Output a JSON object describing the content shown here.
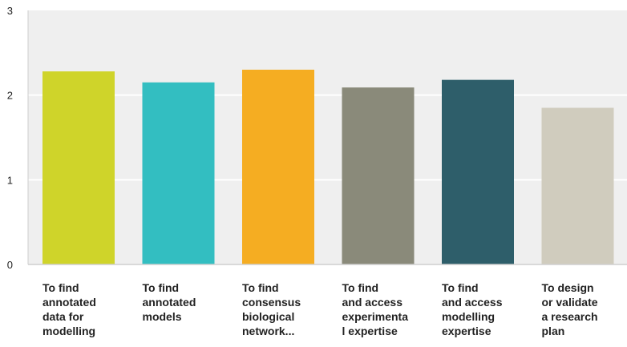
{
  "chart_data": {
    "type": "bar",
    "categories": [
      [
        "To find",
        "annotated",
        "data for",
        "modelling"
      ],
      [
        "To find",
        "annotated",
        "models"
      ],
      [
        "To find",
        "consensus",
        "biological",
        "network..."
      ],
      [
        "To find",
        "and access",
        "experimenta",
        "l expertise"
      ],
      [
        "To find",
        "and access",
        "modelling",
        "expertise"
      ],
      [
        "To design",
        "or validate",
        "a research",
        "plan"
      ]
    ],
    "values": [
      2.28,
      2.15,
      2.3,
      2.09,
      2.18,
      1.85
    ],
    "colors": [
      "#cfd42a",
      "#33bec1",
      "#f5ad22",
      "#8a8a7a",
      "#2e5e6a",
      "#d0ccbe"
    ],
    "ylim": [
      0,
      3
    ],
    "yticks": [
      "0",
      "1",
      "2",
      "3"
    ],
    "grid": true,
    "background": "#efefef",
    "gridline_color": "#ffffff",
    "title": "",
    "xlabel": "",
    "ylabel": ""
  }
}
